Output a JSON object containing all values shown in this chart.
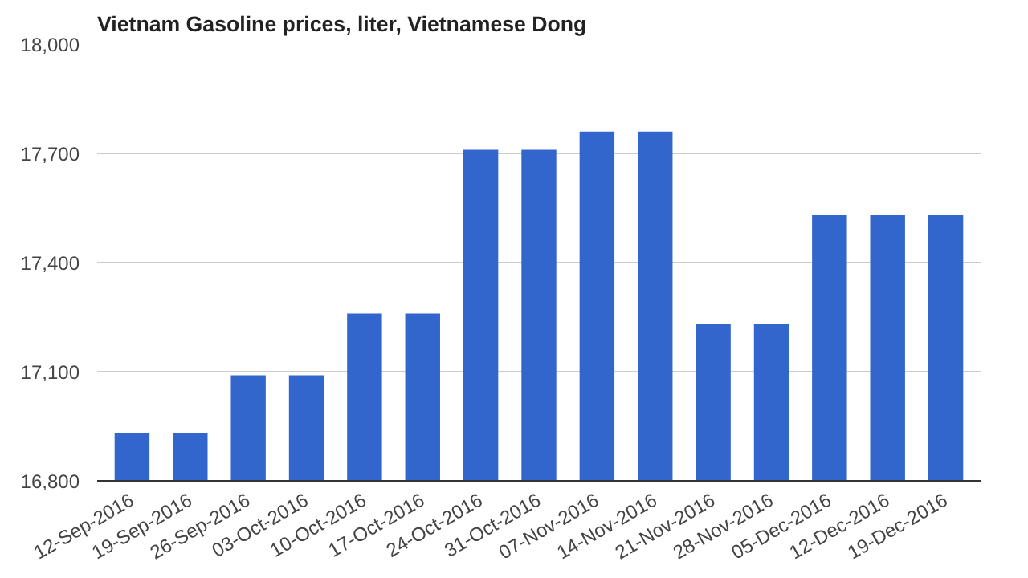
{
  "chart_data": {
    "type": "bar",
    "title": "Vietnam Gasoline prices, liter, Vietnamese Dong",
    "categories": [
      "12-Sep-2016",
      "19-Sep-2016",
      "26-Sep-2016",
      "03-Oct-2016",
      "10-Oct-2016",
      "17-Oct-2016",
      "24-Oct-2016",
      "31-Oct-2016",
      "07-Nov-2016",
      "14-Nov-2016",
      "21-Nov-2016",
      "28-Nov-2016",
      "05-Dec-2016",
      "12-Dec-2016",
      "19-Dec-2016"
    ],
    "values": [
      16930,
      16930,
      17090,
      17090,
      17260,
      17260,
      17710,
      17710,
      17760,
      17760,
      17230,
      17230,
      17530,
      17530,
      17530
    ],
    "color": "#3366cc",
    "ylim": [
      16800,
      18000
    ],
    "yticks": [
      {
        "value": 16800,
        "label": "16,800"
      },
      {
        "value": 17100,
        "label": "17,100"
      },
      {
        "value": 17400,
        "label": "17,400"
      },
      {
        "value": 17700,
        "label": "17,700"
      },
      {
        "value": 18000,
        "label": "18,000"
      }
    ],
    "grid": "y"
  }
}
